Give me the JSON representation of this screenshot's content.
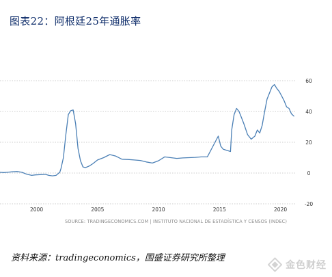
{
  "figure": {
    "title": "图表22：阿根廷25年通胀率",
    "caption": "资料来源：tradingeconomics，国盛证券研究所整理"
  },
  "source_line": "SOURCE: TRADINGECONOMICS.COM | INSTITUTO NACIONAL DE ESTADÍSTICA Y CENSOS (INDEC)",
  "watermark": {
    "text": "金色财经",
    "icon": "watermark-logo-icon"
  },
  "colors": {
    "line": "#4a7fb5",
    "grid": "#cccccc",
    "tick_text": "#333333",
    "title": "#0b2a68"
  },
  "chart_data": {
    "type": "line",
    "title": "",
    "xlabel": "",
    "ylabel": "",
    "x_ticks": [
      2000,
      2005,
      2010,
      2015,
      2020
    ],
    "x_tick_labels": [
      "2000",
      "2005",
      "2010",
      "2015",
      "2020"
    ],
    "y_ticks": [
      -20,
      0,
      20,
      40,
      60
    ],
    "y_tick_labels": [
      "-20",
      "0",
      "20",
      "40",
      "60"
    ],
    "xlim": [
      1997.0,
      2021.2
    ],
    "ylim": [
      -20,
      60
    ],
    "grid": true,
    "y_axis_side": "right",
    "legend": "none",
    "series": [
      {
        "x": [
          1997.0,
          1997.3,
          1997.6,
          1998.0,
          1998.4,
          1998.8,
          1999.2,
          1999.6,
          1999.9,
          2000.3,
          2000.7,
          2001.0,
          2001.3,
          2001.6,
          2001.9,
          2002.0,
          2002.2,
          2002.4,
          2002.6,
          2002.8,
          2003.0,
          2003.2,
          2003.4,
          2003.6,
          2003.8,
          2004.0,
          2004.3,
          2004.6,
          2005.0,
          2005.5,
          2006.0,
          2006.5,
          2007.0,
          2007.5,
          2008.0,
          2008.5,
          2009.0,
          2009.5,
          2010.0,
          2010.5,
          2011.0,
          2011.5,
          2012.0,
          2012.5,
          2013.0,
          2013.5,
          2014.0,
          2014.5,
          2014.9,
          2015.1,
          2015.3,
          2015.5,
          2015.7,
          2015.9,
          2016.0,
          2016.2,
          2016.4,
          2016.6,
          2016.8,
          2017.0,
          2017.3,
          2017.6,
          2017.9,
          2018.1,
          2018.3,
          2018.5,
          2018.7,
          2018.9,
          2019.1,
          2019.3,
          2019.5,
          2019.7,
          2019.9,
          2020.1,
          2020.3,
          2020.5,
          2020.7,
          2020.9,
          2021.1
        ],
        "y": [
          0.5,
          0.3,
          0.5,
          0.8,
          1.0,
          0.5,
          -0.8,
          -1.5,
          -1.2,
          -1.0,
          -0.8,
          -1.5,
          -1.8,
          -1.5,
          0.5,
          3.0,
          10.0,
          25.0,
          38.0,
          40.5,
          41.0,
          32.0,
          16.0,
          8.0,
          4.0,
          3.5,
          4.5,
          6.0,
          8.5,
          10.0,
          12.0,
          11.0,
          9.0,
          8.8,
          8.5,
          8.2,
          7.2,
          6.5,
          8.0,
          10.5,
          10.0,
          9.5,
          9.8,
          10.0,
          10.2,
          10.5,
          10.5,
          18.0,
          24.0,
          17.5,
          15.5,
          15.0,
          14.5,
          14.0,
          28.0,
          38.0,
          42.0,
          40.0,
          36.0,
          32.0,
          25.0,
          22.0,
          24.0,
          28.0,
          26.0,
          31.0,
          40.0,
          48.0,
          52.0,
          56.0,
          57.5,
          55.0,
          53.0,
          50.0,
          47.0,
          43.0,
          42.0,
          38.5,
          37.0
        ]
      }
    ]
  }
}
